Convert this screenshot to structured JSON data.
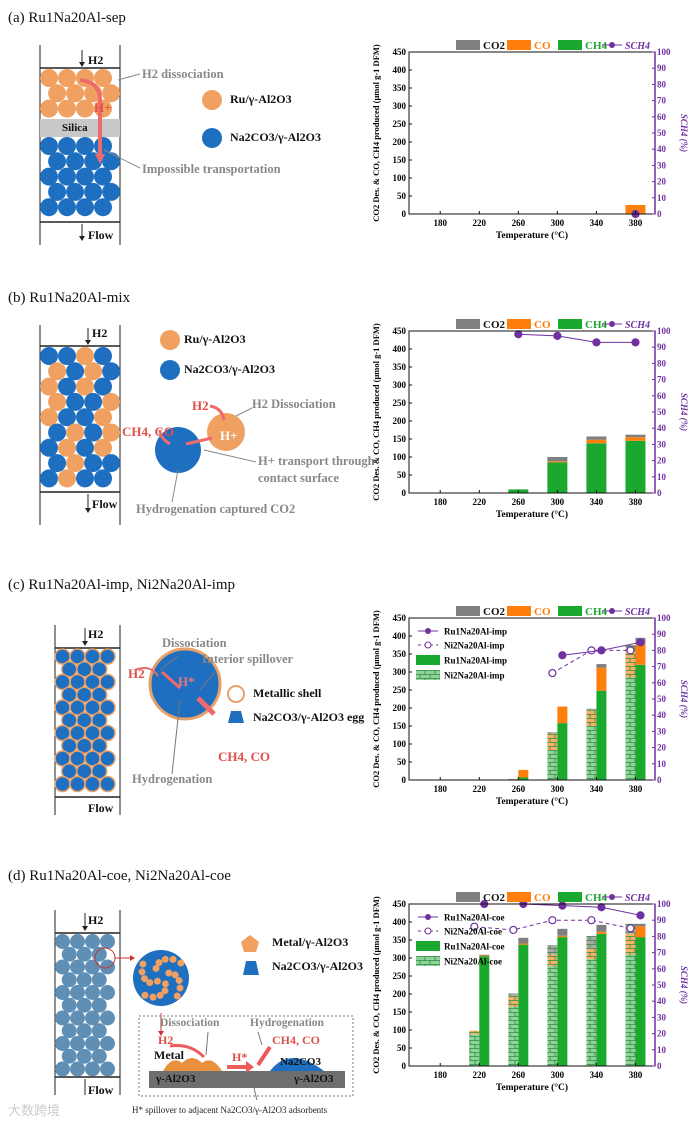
{
  "panels": {
    "a": {
      "title": "(a) Ru1Na20Al-sep",
      "h2": "H2",
      "flow": "Flow",
      "dissociation": "H2 dissociation",
      "hplus": "H+",
      "silica": "Silica",
      "ru": "Ru/γ-Al2O3",
      "na": "Na2CO3/γ-Al2O3",
      "impossible": "Impossible transportation"
    },
    "b": {
      "title": "(b) Ru1Na20Al-mix",
      "h2": "H2",
      "flow": "Flow",
      "ru": "Ru/γ-Al2O3",
      "na": "Na2CO3/γ-Al2O3",
      "h2red": "H2",
      "dissociation": "H2 Dissociation",
      "products": "CH4, CO",
      "hplus": "H+",
      "transport1": "H+ transport through",
      "transport2": "contact surface",
      "hydrogenation": "Hydrogenation captured CO2"
    },
    "c": {
      "title": "(c) Ru1Na20Al-imp, Ni2Na20Al-imp",
      "h2": "H2",
      "flow": "Flow",
      "dissociation": "Dissociation",
      "interior": "Interior spillover",
      "h2red": "H2",
      "hplus": "H*",
      "shell": "Metallic shell",
      "egg": "Na2CO3/γ-Al2O3 egg",
      "products": "CH4, CO",
      "hydrogenation": "Hydrogenation"
    },
    "d": {
      "title": "(d) Ru1Na20Al-coe, Ni2Na20Al-coe",
      "h2": "H2",
      "flow": "Flow",
      "metal_legend": "Metal/γ-Al2O3",
      "na_legend": "Na2CO3/γ-Al2O3",
      "dissociation": "Dissociation",
      "hydrogenation": "Hydrogenation",
      "h2red": "H2",
      "products": "CH4, CO",
      "metal": "Metal",
      "hplus": "H*",
      "na2co3": "Na2CO3",
      "al2o3_left": "γ-Al2O3",
      "al2o3_right": "γ-Al2O3",
      "caption": "H* spillover to adjacent Na2CO3/γ-Al2O3 adsorbents"
    }
  },
  "watermark": "大数跨境",
  "colors": {
    "co2": "#7f7f7f",
    "co": "#ff7f0e",
    "ch4": "#1aa82e",
    "hatch_fill": "#8fd39a",
    "selectivity": "#7030a0",
    "ru": "#f0a060",
    "na": "#1f6fc0"
  },
  "chart_data": [
    {
      "panel": "a",
      "type": "bar",
      "stacked": true,
      "categories": [
        180,
        220,
        260,
        300,
        340,
        380
      ],
      "xlabel": "Temperature (°C)",
      "ylabel": "CO2 Des. & CO, CH4 produced (μmol g-1 DFM)",
      "y2label": "SCH4 (%)",
      "xlim": [
        148,
        400
      ],
      "ylim": [
        0,
        450
      ],
      "y2lim": [
        0,
        100
      ],
      "legend": [
        "CO2",
        "CO",
        "CH4",
        "SCH4"
      ],
      "legend_position": "top",
      "samples": [
        {
          "style": "solid",
          "CO2": [
            0,
            0,
            0,
            0,
            0,
            0
          ],
          "CO": [
            0,
            0,
            0,
            0,
            0,
            25
          ],
          "CH4": [
            0,
            0,
            0,
            0,
            0,
            0
          ],
          "selectivity": [
            null,
            null,
            null,
            null,
            null,
            0
          ]
        }
      ]
    },
    {
      "panel": "b",
      "type": "bar",
      "stacked": true,
      "categories": [
        180,
        220,
        260,
        300,
        340,
        380
      ],
      "xlabel": "Temperature (°C)",
      "ylabel": "CO2 Des. & CO, CH4 produced (μmol g-1 DFM)",
      "y2label": "SCH4 (%)",
      "xlim": [
        148,
        400
      ],
      "ylim": [
        0,
        450
      ],
      "y2lim": [
        0,
        100
      ],
      "legend": [
        "CO2",
        "CO",
        "CH4",
        "SCH4"
      ],
      "legend_position": "top",
      "samples": [
        {
          "style": "solid",
          "CO2": [
            0,
            0,
            0,
            12,
            9,
            7
          ],
          "CO": [
            0,
            0,
            0,
            3,
            10,
            10
          ],
          "CH4": [
            0,
            0,
            10,
            85,
            138,
            145
          ],
          "selectivity": [
            null,
            null,
            98,
            97,
            93,
            93
          ]
        }
      ]
    },
    {
      "panel": "c",
      "type": "bar",
      "stacked": true,
      "categories": [
        180,
        220,
        260,
        300,
        340,
        380
      ],
      "xlabel": "Temperature (°C)",
      "ylabel": "CO2 Des. & CO, CH4 produced (μmol g-1 DFM)",
      "y2label": "SCH4 (%)",
      "xlim": [
        148,
        400
      ],
      "ylim": [
        0,
        450
      ],
      "y2lim": [
        0,
        100
      ],
      "legend": [
        "CO2",
        "CO",
        "CH4",
        "SCH4"
      ],
      "legend_position": "top",
      "sample_legend": [
        "Ru1Na20Al-imp",
        "Ni2Na20Al-imp",
        "Ru1Na20Al-imp",
        "Ni2Na20Al-imp"
      ],
      "samples": [
        {
          "style": "hatched",
          "CO2": [
            0,
            0,
            0,
            4,
            4,
            10
          ],
          "CO": [
            0,
            0,
            3,
            47,
            44,
            80
          ],
          "CH4": [
            0,
            0,
            0,
            82,
            150,
            285
          ],
          "selectivity": [
            null,
            null,
            null,
            66,
            80,
            80
          ]
        },
        {
          "style": "solid",
          "CO2": [
            0,
            0,
            0,
            0,
            10,
            15
          ],
          "CO": [
            0,
            0,
            21,
            46,
            64,
            60
          ],
          "CH4": [
            0,
            0,
            7,
            158,
            248,
            320
          ],
          "selectivity": [
            null,
            null,
            null,
            77,
            80,
            85
          ]
        }
      ]
    },
    {
      "panel": "d",
      "type": "bar",
      "stacked": true,
      "categories": [
        180,
        220,
        260,
        300,
        340,
        380
      ],
      "xlabel": "Temperature (°C)",
      "ylabel": "CO2 Des. & CO, CH4 produced (μmol g-1 DFM)",
      "y2label": "SCH4 (%)",
      "xlim": [
        148,
        400
      ],
      "ylim": [
        0,
        450
      ],
      "y2lim": [
        0,
        100
      ],
      "legend": [
        "CO2",
        "CO",
        "CH4",
        "SCH4"
      ],
      "legend_position": "top",
      "sample_legend": [
        "Ru1Na20Al-coe",
        "Ni2Na20Al-coe",
        "Ru1Na20Al-coe",
        "Ni2Na20Al-coe"
      ],
      "samples": [
        {
          "style": "hatched",
          "CO2": [
            0,
            0,
            7,
            26,
            33,
            27
          ],
          "CO": [
            0,
            10,
            30,
            32,
            31,
            58
          ],
          "CH4": [
            0,
            88,
            165,
            278,
            297,
            310
          ],
          "selectivity": [
            null,
            86,
            84,
            90,
            90,
            85
          ]
        },
        {
          "style": "solid",
          "CO2": [
            0,
            2,
            16,
            19,
            19,
            7
          ],
          "CO": [
            0,
            2,
            3,
            4,
            6,
            30
          ],
          "CH4": [
            0,
            305,
            337,
            358,
            367,
            358
          ],
          "selectivity": [
            null,
            100,
            100,
            99,
            98,
            93
          ]
        }
      ]
    }
  ]
}
